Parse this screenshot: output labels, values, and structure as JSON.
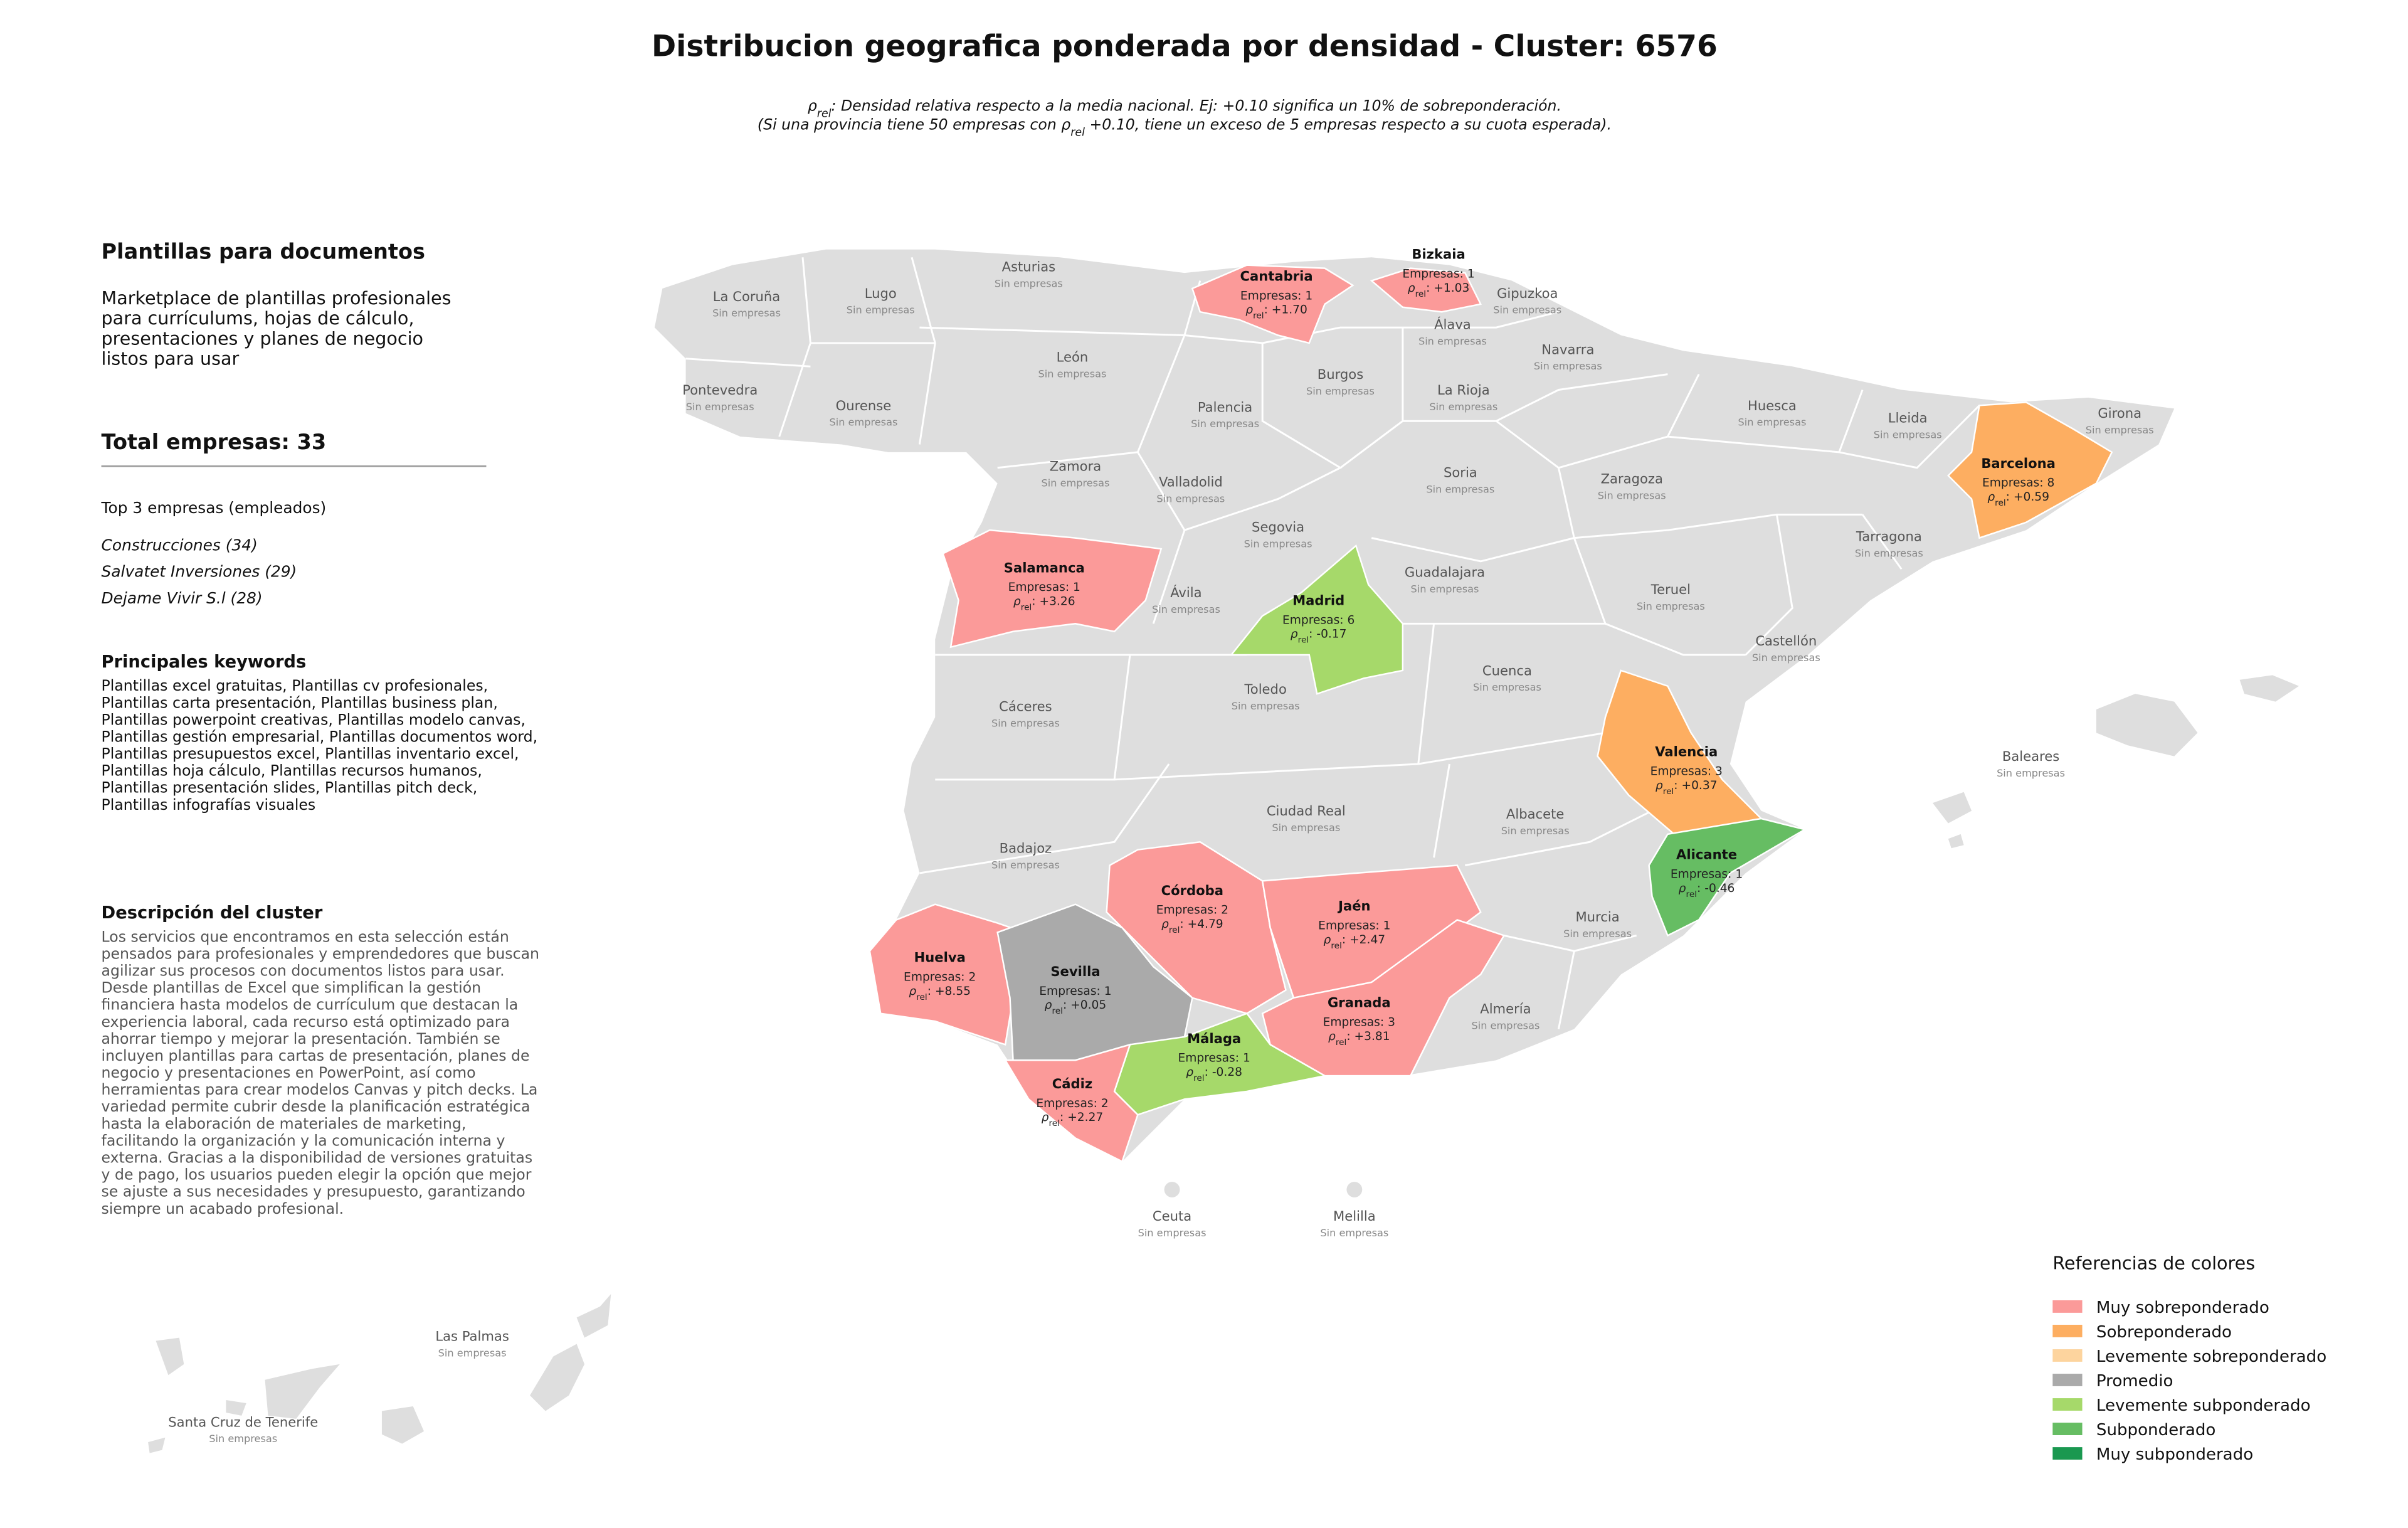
{
  "header": {
    "title": "Distribucion geografica ponderada por densidad - Cluster: 6576",
    "note_lines": [
      [
        {
          "text": "ρ"
        },
        {
          "sub": "rel"
        },
        {
          "text": ": Densidad relativa respecto a la media nacional. Ej: +0.10 significa un 10% de sobreponderación."
        }
      ],
      [
        {
          "text": "(Si una provincia tiene 50 empresas con ρ"
        },
        {
          "sub": "rel"
        },
        {
          "text": " +0.10, tiene un exceso de 5 empresas respecto a su cuota esperada)."
        }
      ]
    ]
  },
  "panel": {
    "heading": "Plantillas para documentos",
    "summary_lines": [
      "Marketplace de plantillas profesionales",
      "para currículums, hojas de cálculo,",
      "presentaciones y planes de negocio",
      "listos para usar"
    ],
    "total": "Total empresas: 33",
    "top_title": "Top 3 empresas (empleados)",
    "top": [
      "Construcciones (34)",
      "Salvatet Inversiones (29)",
      "Dejame Vivir S.l (28)"
    ],
    "keywords_title": "Principales keywords",
    "keywords_lines": [
      "Plantillas excel gratuitas, Plantillas cv profesionales,",
      "Plantillas carta presentación, Plantillas business plan,",
      "Plantillas powerpoint creativas, Plantillas modelo canvas,",
      "Plantillas gestión empresarial, Plantillas documentos word,",
      "Plantillas presupuestos excel, Plantillas inventario excel,",
      "Plantillas hoja cálculo, Plantillas recursos humanos,",
      "Plantillas presentación slides, Plantillas pitch deck,",
      "Plantillas infografías visuales"
    ],
    "description_title": "Descripción del cluster",
    "description_lines": [
      "Los servicios que encontramos en esta selección están",
      "pensados para profesionales y emprendedores que buscan",
      "agilizar sus procesos con documentos listos para usar.",
      "Desde plantillas de Excel que simplifican la gestión",
      "financiera hasta modelos de currículum que destacan la",
      "experiencia laboral, cada recurso está optimizado para",
      "ahorrar tiempo y mejorar la presentación. También se",
      "incluyen plantillas para cartas de presentación, planes de",
      "negocio y presentaciones en PowerPoint, así como",
      "herramientas para crear modelos Canvas y pitch decks. La",
      "variedad permite cubrir desde la planificación estratégica",
      "hasta la elaboración de materiales de marketing,",
      "facilitando la organización y la comunicación interna y",
      "externa. Gracias a la disponibilidad de versiones gratuitas",
      "y de pago, los usuarios pueden elegir la opción que mejor",
      "se ajuste a sus necesidades y presupuesto, garantizando",
      "siempre un acabado profesional."
    ]
  },
  "map": {
    "base_color": "#dedede",
    "labels": {
      "companies": "Empresas:",
      "rho_symbol": "ρ",
      "rho_subscript": "rel",
      "rho_colon": ":",
      "empty": "Sin empresas"
    },
    "provinces": [
      {
        "name": "La Coruña"
      },
      {
        "name": "Lugo"
      },
      {
        "name": "Asturias"
      },
      {
        "name": "Cantabria",
        "companies": 1,
        "rho": "+1.70",
        "color": "#fb9a99"
      },
      {
        "name": "Bizkaia",
        "companies": 1,
        "rho": "+1.03",
        "color": "#fb9a99"
      },
      {
        "name": "Gipuzkoa"
      },
      {
        "name": "Álava"
      },
      {
        "name": "Navarra"
      },
      {
        "name": "León"
      },
      {
        "name": "Burgos"
      },
      {
        "name": "La Rioja"
      },
      {
        "name": "Pontevedra"
      },
      {
        "name": "Ourense"
      },
      {
        "name": "Palencia"
      },
      {
        "name": "Huesca"
      },
      {
        "name": "Lleida"
      },
      {
        "name": "Girona"
      },
      {
        "name": "Barcelona",
        "companies": 8,
        "rho": "+0.59",
        "color": "#fdae61"
      },
      {
        "name": "Zamora"
      },
      {
        "name": "Soria"
      },
      {
        "name": "Zaragoza"
      },
      {
        "name": "Valladolid"
      },
      {
        "name": "Segovia"
      },
      {
        "name": "Tarragona"
      },
      {
        "name": "Salamanca",
        "companies": 1,
        "rho": "+3.26",
        "color": "#fb9a99"
      },
      {
        "name": "Guadalajara"
      },
      {
        "name": "Ávila"
      },
      {
        "name": "Madrid",
        "companies": 6,
        "rho": "-0.17",
        "color": "#a6d96a"
      },
      {
        "name": "Teruel"
      },
      {
        "name": "Castellón"
      },
      {
        "name": "Cuenca"
      },
      {
        "name": "Toledo"
      },
      {
        "name": "Cáceres"
      },
      {
        "name": "Valencia",
        "companies": 3,
        "rho": "+0.37",
        "color": "#fdae61"
      },
      {
        "name": "Baleares"
      },
      {
        "name": "Ciudad Real"
      },
      {
        "name": "Albacete"
      },
      {
        "name": "Badajoz"
      },
      {
        "name": "Alicante",
        "companies": 1,
        "rho": "-0.46",
        "color": "#66bd63"
      },
      {
        "name": "Córdoba",
        "companies": 2,
        "rho": "+4.79",
        "color": "#fb9a99"
      },
      {
        "name": "Jaén",
        "companies": 1,
        "rho": "+2.47",
        "color": "#fb9a99"
      },
      {
        "name": "Murcia"
      },
      {
        "name": "Huelva",
        "companies": 2,
        "rho": "+8.55",
        "color": "#fb9a99"
      },
      {
        "name": "Sevilla",
        "companies": 1,
        "rho": "+0.05",
        "color": "#aaaaaa"
      },
      {
        "name": "Granada",
        "companies": 3,
        "rho": "+3.81",
        "color": "#fb9a99"
      },
      {
        "name": "Almería"
      },
      {
        "name": "Málaga",
        "companies": 1,
        "rho": "-0.28",
        "color": "#a6d96a"
      },
      {
        "name": "Cádiz",
        "companies": 2,
        "rho": "+2.27",
        "color": "#fb9a99"
      },
      {
        "name": "Ceuta"
      },
      {
        "name": "Melilla"
      },
      {
        "name": "Las Palmas"
      },
      {
        "name": "Santa Cruz de Tenerife"
      }
    ]
  },
  "legend": {
    "title": "Referencias de colores",
    "entries": [
      {
        "label": "Muy sobreponderado",
        "color": "#fb9a99"
      },
      {
        "label": "Sobreponderado",
        "color": "#fdae61"
      },
      {
        "label": "Levemente sobreponderado",
        "color": "#fdd49e"
      },
      {
        "label": "Promedio",
        "color": "#aaaaaa"
      },
      {
        "label": "Levemente subponderado",
        "color": "#a6d96a"
      },
      {
        "label": "Subponderado",
        "color": "#66bd63"
      },
      {
        "label": "Muy subponderado",
        "color": "#1a9850"
      }
    ]
  }
}
